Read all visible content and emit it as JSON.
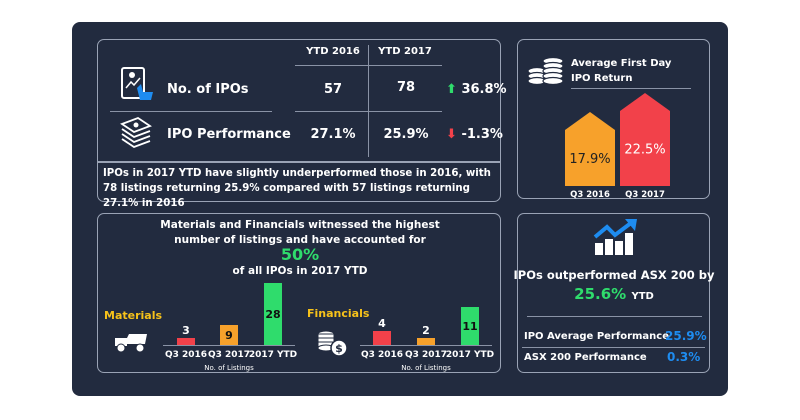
{
  "summary_table": {
    "headers": [
      "YTD 2016",
      "YTD 2017"
    ],
    "rows": [
      {
        "label": "No. of IPOs",
        "icon": "tablet-chart-hand-icon",
        "ytd2016": "57",
        "ytd2017": "78",
        "change": "36.8%",
        "direction": "up"
      },
      {
        "label": "IPO Performance",
        "icon": "cash-stack-icon",
        "ytd2016": "27.1%",
        "ytd2017": "25.9%",
        "change": "-1.3%",
        "direction": "down"
      }
    ],
    "note": "IPOs in 2017 YTD have slightly underperformed those in 2016, with 78 listings returning 25.9% compared with 57 listings returning 27.1% in 2016"
  },
  "sector_panel": {
    "title_line1": "Materials and Financials witnessed the highest",
    "title_line2": "number of listings and have accounted for",
    "highlight": "50%",
    "subtitle": "of all IPOs in 2017 YTD"
  },
  "chart_data": [
    {
      "type": "bar",
      "title": "Materials",
      "xlabel": "No. of Listings",
      "categories": [
        "Q3 2016",
        "Q3 2017",
        "2017 YTD"
      ],
      "values": [
        3,
        9,
        28
      ],
      "colors": [
        "#f2414a",
        "#f7a12b",
        "#2fdc6c"
      ]
    },
    {
      "type": "bar",
      "title": "Financials",
      "xlabel": "No. of Listings",
      "categories": [
        "Q3 2016",
        "Q3 2017",
        "2017 YTD"
      ],
      "values": [
        4,
        2,
        11
      ],
      "colors": [
        "#f2414a",
        "#f7a12b",
        "#2fdc6c"
      ]
    },
    {
      "type": "bar",
      "title": "Average First Day IPO Return",
      "categories": [
        "Q3 2016",
        "Q3 2017"
      ],
      "values": [
        17.9,
        22.5
      ],
      "value_labels": [
        "17.9%",
        "22.5%"
      ],
      "colors": [
        "#f7a12b",
        "#f2414a"
      ]
    }
  ],
  "first_day": {
    "title_line1": "Average First Day",
    "title_line2": "IPO Return"
  },
  "outperform": {
    "text": "IPOs outperformed ASX 200 by",
    "value": "25.6%",
    "suffix": "YTD",
    "rows": [
      {
        "label": "IPO Average Performance",
        "value": "25.9%"
      },
      {
        "label": "ASX 200 Performance",
        "value": "0.3%"
      }
    ]
  },
  "colors": {
    "background": "#222b3f",
    "green": "#2fdc6c",
    "red": "#f2414a",
    "orange": "#f7a12b",
    "blue": "#1e8cf0",
    "yellow": "#f7c21a"
  }
}
